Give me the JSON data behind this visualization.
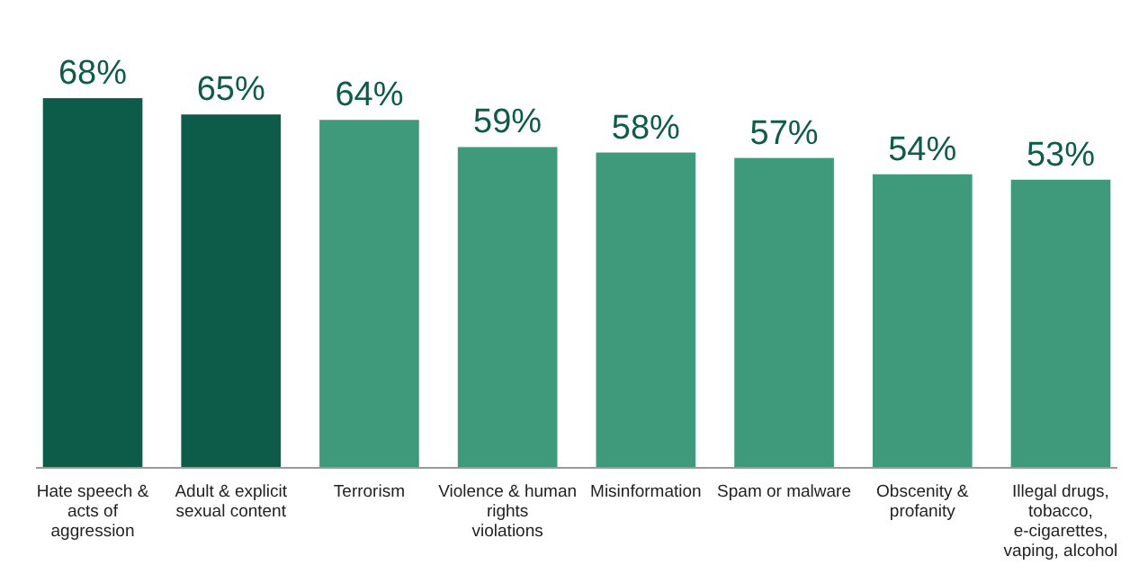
{
  "chart_data": {
    "type": "bar",
    "categories": [
      "Hate speech & acts of aggression",
      "Adult & explicit sexual content",
      "Terrorism",
      "Violence & human rights violations",
      "Misinformation",
      "Spam or malware",
      "Obscenity & profanity",
      "Illegal drugs, tobacco, e-cigarettes, vaping, alcohol"
    ],
    "values": [
      68,
      65,
      64,
      59,
      58,
      57,
      54,
      53
    ],
    "colors": [
      "#0d5c4a",
      "#0d5c4a",
      "#3f9a7b",
      "#3f9a7b",
      "#3f9a7b",
      "#3f9a7b",
      "#3f9a7b",
      "#3f9a7b"
    ],
    "value_labels": [
      "68%",
      "65%",
      "64%",
      "59%",
      "58%",
      "57%",
      "54%",
      "53%"
    ]
  }
}
